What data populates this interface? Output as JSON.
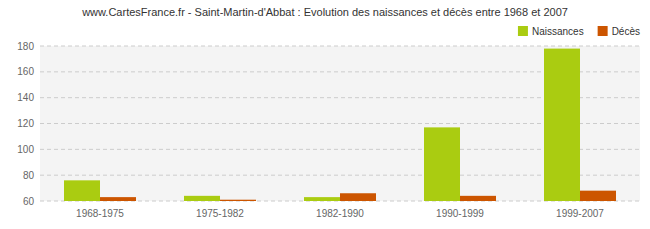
{
  "chart_data": {
    "type": "bar",
    "title": "www.CartesFrance.fr - Saint-Martin-d'Abbat : Evolution des naissances et décès entre 1968 et 2007",
    "categories": [
      "1968-1975",
      "1975-1982",
      "1982-1990",
      "1990-1999",
      "1999-2007"
    ],
    "series": [
      {
        "name": "Naissances",
        "color": "#aacc11",
        "values": [
          76,
          64,
          63,
          117,
          178
        ]
      },
      {
        "name": "Décès",
        "color": "#cc5500",
        "values": [
          63,
          61,
          66,
          64,
          68
        ]
      }
    ],
    "ylim": [
      60,
      180
    ],
    "yticks": [
      60,
      80,
      100,
      120,
      140,
      160,
      180
    ],
    "grid": true,
    "legend": "upper right"
  }
}
